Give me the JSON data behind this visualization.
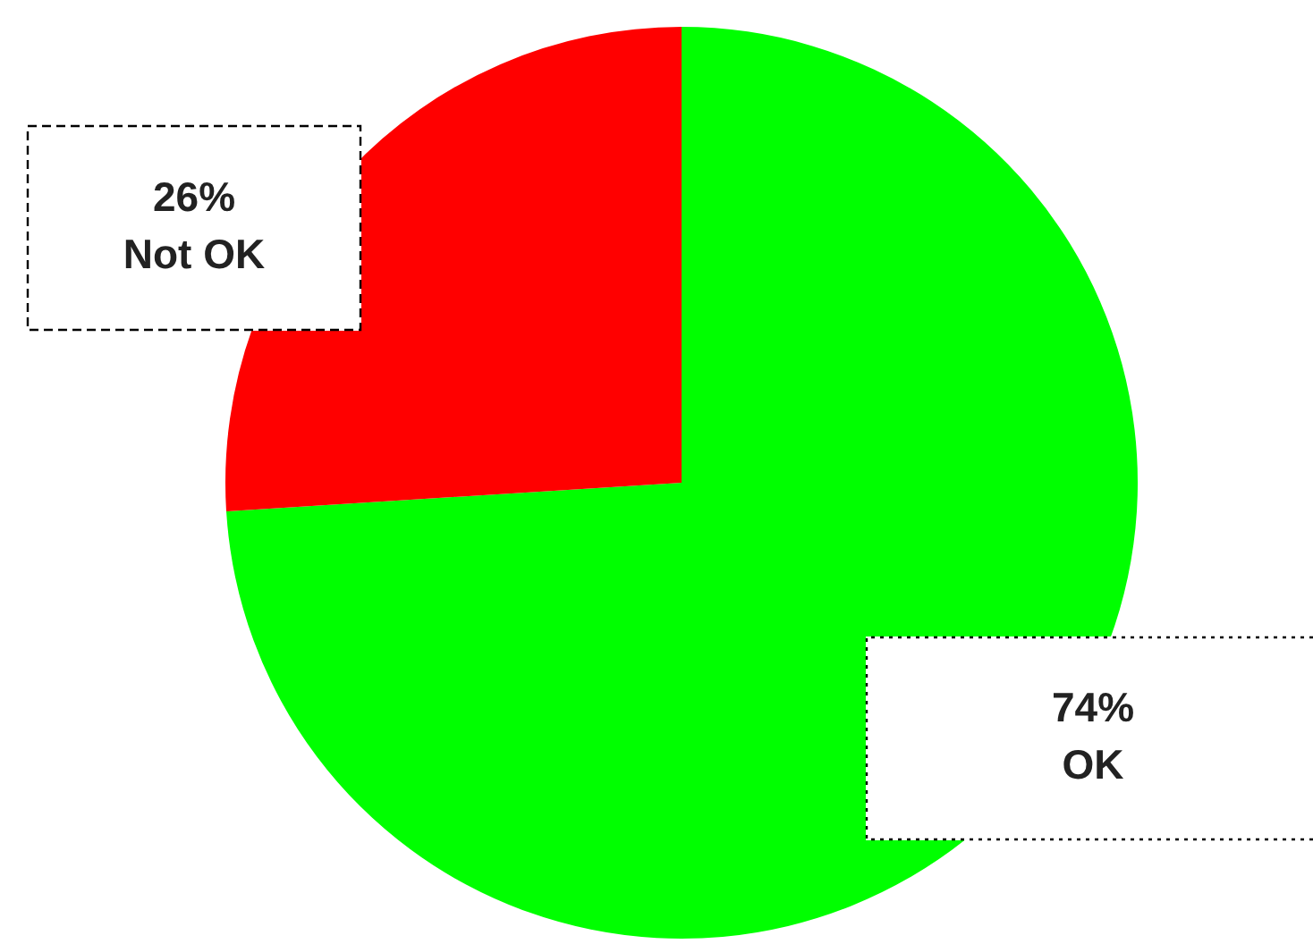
{
  "chart_data": {
    "type": "pie",
    "categories": [
      "OK",
      "Not OK"
    ],
    "values": [
      74,
      26
    ],
    "colors": [
      "#00ff00",
      "#ff0000"
    ],
    "value_labels": [
      "74%",
      "26%"
    ],
    "legend": false
  }
}
